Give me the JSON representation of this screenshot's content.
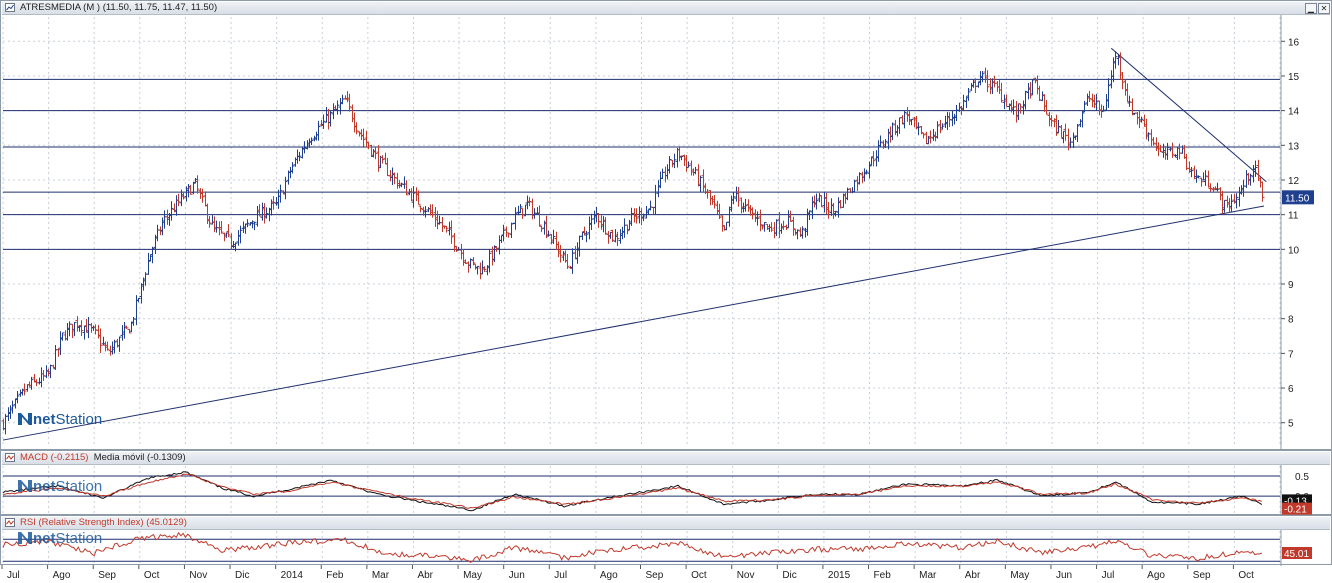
{
  "main_panel": {
    "title": "ATRESMEDIA (M ) (11.50, 11.75, 11.47, 11.50)",
    "last_price_tag": "11.50",
    "logo": {
      "net": "net",
      "station": "Station"
    }
  },
  "macd_panel": {
    "title": "MACD (-0.2115)",
    "subtitle": "Media móvil (-0.1309)",
    "value_tag_dark": "-0.13",
    "value_tag_red": "-0.21",
    "logo": {
      "net": "net",
      "station": "Station"
    }
  },
  "rsi_panel": {
    "title": "RSI (Relative Strength Index) (45.0129)",
    "value_tag": "45.01",
    "logo": {
      "net": "net",
      "station": "Station"
    }
  },
  "colors": {
    "bar_up": "#1f3f8f",
    "bar_down": "#c0392b",
    "hline": "#1f2f6f",
    "grid": "#c8d0da",
    "macd_line": "#111111",
    "macd_signal": "#c0392b",
    "rsi_line": "#c0392b",
    "tag_bg": "#1f3f8f"
  },
  "chart_data": [
    {
      "type": "ohlc",
      "title": "ATRESMEDIA (M ) (11.50, 11.75, 11.47, 11.50)",
      "ylim": [
        4.3,
        16.7
      ],
      "y_ticks": [
        5,
        6,
        7,
        8,
        9,
        10,
        11,
        12,
        13,
        14,
        15,
        16
      ],
      "x_tick_labels": [
        "Jul",
        "Ago",
        "Sep",
        "Oct",
        "Nov",
        "Dic",
        "2014",
        "Feb",
        "Mar",
        "Abr",
        "May",
        "Jun",
        "Jul",
        "Ago",
        "Sep",
        "Oct",
        "Nov",
        "Dic",
        "2015",
        "Feb",
        "Mar",
        "Abr",
        "May",
        "Jun",
        "Jul",
        "Ago",
        "Sep",
        "Oct"
      ],
      "x_range_months": [
        0,
        28
      ],
      "horizontal_levels": [
        10.0,
        11.0,
        11.65,
        12.95,
        14.0,
        14.9
      ],
      "trendlines": [
        {
          "from": [
            0,
            4.5
          ],
          "to": [
            27.65,
            11.25
          ]
        },
        {
          "from": [
            24.3,
            15.8
          ],
          "to": [
            27.7,
            11.95
          ]
        }
      ],
      "close_keypoints_month_value": [
        [
          0.0,
          5.0
        ],
        [
          0.5,
          6.0
        ],
        [
          1.0,
          6.4
        ],
        [
          1.3,
          7.5
        ],
        [
          1.6,
          7.9
        ],
        [
          2.0,
          7.6
        ],
        [
          2.3,
          7.0
        ],
        [
          2.6,
          7.5
        ],
        [
          2.8,
          7.8
        ],
        [
          3.2,
          9.8
        ],
        [
          3.5,
          10.8
        ],
        [
          4.0,
          11.6
        ],
        [
          4.2,
          11.9
        ],
        [
          4.6,
          10.6
        ],
        [
          5.0,
          10.2
        ],
        [
          5.5,
          10.9
        ],
        [
          6.0,
          11.3
        ],
        [
          6.3,
          12.3
        ],
        [
          6.7,
          13.2
        ],
        [
          7.2,
          13.9
        ],
        [
          7.5,
          14.3
        ],
        [
          7.8,
          13.4
        ],
        [
          8.2,
          12.6
        ],
        [
          8.6,
          12.0
        ],
        [
          9.0,
          11.5
        ],
        [
          9.4,
          11.0
        ],
        [
          9.8,
          10.4
        ],
        [
          10.2,
          9.6
        ],
        [
          10.5,
          9.4
        ],
        [
          10.8,
          10.0
        ],
        [
          11.2,
          10.9
        ],
        [
          11.5,
          11.3
        ],
        [
          11.9,
          10.6
        ],
        [
          12.2,
          9.9
        ],
        [
          12.4,
          9.5
        ],
        [
          12.7,
          10.4
        ],
        [
          13.0,
          11.0
        ],
        [
          13.4,
          10.3
        ],
        [
          13.8,
          10.9
        ],
        [
          14.2,
          11.2
        ],
        [
          14.5,
          12.2
        ],
        [
          14.8,
          12.8
        ],
        [
          15.2,
          12.1
        ],
        [
          15.6,
          11.2
        ],
        [
          15.8,
          10.4
        ],
        [
          16.0,
          11.6
        ],
        [
          16.4,
          11.0
        ],
        [
          16.8,
          10.6
        ],
        [
          17.2,
          10.8
        ],
        [
          17.5,
          10.4
        ],
        [
          17.8,
          11.5
        ],
        [
          18.2,
          11.1
        ],
        [
          18.6,
          11.8
        ],
        [
          19.0,
          12.5
        ],
        [
          19.4,
          13.3
        ],
        [
          19.8,
          13.9
        ],
        [
          20.2,
          13.1
        ],
        [
          20.6,
          13.6
        ],
        [
          21.0,
          14.1
        ],
        [
          21.4,
          15.0
        ],
        [
          21.8,
          14.6
        ],
        [
          22.2,
          13.9
        ],
        [
          22.6,
          14.8
        ],
        [
          23.0,
          13.6
        ],
        [
          23.4,
          13.1
        ],
        [
          23.8,
          14.4
        ],
        [
          24.1,
          13.9
        ],
        [
          24.4,
          15.7
        ],
        [
          24.7,
          14.1
        ],
        [
          25.0,
          13.6
        ],
        [
          25.4,
          12.7
        ],
        [
          25.8,
          12.9
        ],
        [
          26.1,
          12.1
        ],
        [
          26.5,
          11.9
        ],
        [
          26.8,
          11.2
        ],
        [
          27.1,
          11.6
        ],
        [
          27.4,
          12.4
        ],
        [
          27.65,
          11.5
        ]
      ],
      "last": 11.5
    },
    {
      "type": "line",
      "title": "MACD (-0.2115)",
      "ylim": [
        -0.42,
        0.75
      ],
      "y_ticks": [
        0.5,
        0.0
      ],
      "series": [
        {
          "name": "MACD (-0.2115)",
          "last": -0.2115,
          "keypoints_month_value": [
            [
              0,
              0.1
            ],
            [
              1.2,
              0.25
            ],
            [
              2.2,
              -0.05
            ],
            [
              3.2,
              0.45
            ],
            [
              4.0,
              0.6
            ],
            [
              4.8,
              0.2
            ],
            [
              5.5,
              0.0
            ],
            [
              6.2,
              0.15
            ],
            [
              7.2,
              0.4
            ],
            [
              8.2,
              0.05
            ],
            [
              9.2,
              -0.15
            ],
            [
              10.3,
              -0.35
            ],
            [
              11.2,
              0.05
            ],
            [
              12.3,
              -0.25
            ],
            [
              13.2,
              -0.05
            ],
            [
              14.8,
              0.25
            ],
            [
              15.8,
              -0.2
            ],
            [
              16.8,
              -0.1
            ],
            [
              17.8,
              0.05
            ],
            [
              18.8,
              0.05
            ],
            [
              19.8,
              0.3
            ],
            [
              21.0,
              0.25
            ],
            [
              21.8,
              0.4
            ],
            [
              22.8,
              0.0
            ],
            [
              23.8,
              0.1
            ],
            [
              24.4,
              0.35
            ],
            [
              25.2,
              -0.15
            ],
            [
              26.2,
              -0.2
            ],
            [
              27.2,
              0.0
            ],
            [
              27.65,
              -0.21
            ]
          ]
        },
        {
          "name": "Media móvil (-0.1309)",
          "last": -0.1309,
          "keypoints_month_value": [
            [
              0,
              0.05
            ],
            [
              1.2,
              0.2
            ],
            [
              2.2,
              0.0
            ],
            [
              3.2,
              0.35
            ],
            [
              4.0,
              0.55
            ],
            [
              4.8,
              0.25
            ],
            [
              5.5,
              0.05
            ],
            [
              6.2,
              0.12
            ],
            [
              7.2,
              0.35
            ],
            [
              8.2,
              0.1
            ],
            [
              9.2,
              -0.1
            ],
            [
              10.3,
              -0.3
            ],
            [
              11.2,
              -0.02
            ],
            [
              12.3,
              -0.2
            ],
            [
              13.2,
              -0.08
            ],
            [
              14.8,
              0.2
            ],
            [
              15.8,
              -0.12
            ],
            [
              16.8,
              -0.1
            ],
            [
              17.8,
              0.02
            ],
            [
              18.8,
              0.05
            ],
            [
              19.8,
              0.25
            ],
            [
              21.0,
              0.25
            ],
            [
              21.8,
              0.35
            ],
            [
              22.8,
              0.05
            ],
            [
              23.8,
              0.08
            ],
            [
              24.4,
              0.3
            ],
            [
              25.2,
              -0.08
            ],
            [
              26.2,
              -0.18
            ],
            [
              27.2,
              -0.05
            ],
            [
              27.65,
              -0.13
            ]
          ]
        }
      ]
    },
    {
      "type": "line",
      "title": "RSI (Relative Strength Index) (45.0129)",
      "ylim": [
        25,
        85
      ],
      "levels": [
        70,
        30
      ],
      "series": [
        {
          "name": "RSI (Relative Strength Index) (45.0129)",
          "last": 45.01,
          "keypoints_month_value": [
            [
              0,
              60
            ],
            [
              1.0,
              66
            ],
            [
              2.0,
              45
            ],
            [
              3.0,
              72
            ],
            [
              4.0,
              78
            ],
            [
              4.8,
              50
            ],
            [
              5.5,
              55
            ],
            [
              6.5,
              65
            ],
            [
              7.5,
              68
            ],
            [
              8.5,
              42
            ],
            [
              9.5,
              40
            ],
            [
              10.3,
              32
            ],
            [
              11.2,
              55
            ],
            [
              12.3,
              36
            ],
            [
              13.2,
              50
            ],
            [
              14.8,
              62
            ],
            [
              15.8,
              38
            ],
            [
              16.8,
              45
            ],
            [
              17.8,
              52
            ],
            [
              18.8,
              52
            ],
            [
              19.8,
              62
            ],
            [
              21.0,
              55
            ],
            [
              21.8,
              66
            ],
            [
              22.8,
              45
            ],
            [
              23.8,
              55
            ],
            [
              24.4,
              66
            ],
            [
              25.2,
              40
            ],
            [
              26.2,
              35
            ],
            [
              27.2,
              48
            ],
            [
              27.65,
              45
            ]
          ]
        }
      ]
    }
  ]
}
